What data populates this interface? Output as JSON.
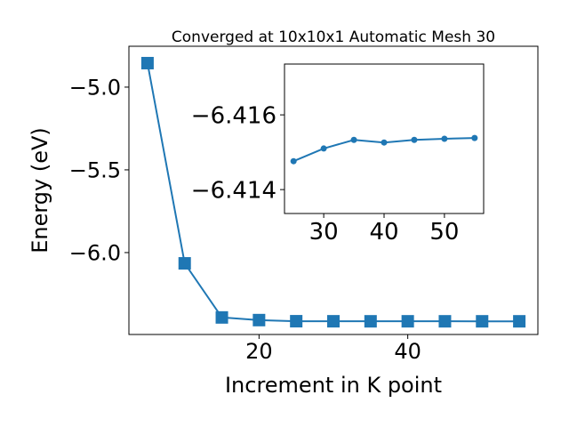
{
  "chart_data": [
    {
      "type": "line",
      "title": "Converged at 10x10x1 Automatic Mesh 30",
      "xlabel": "Increment in K point",
      "ylabel": "Energy (eV)",
      "x": [
        5,
        10,
        15,
        20,
        25,
        30,
        35,
        40,
        45,
        50,
        55
      ],
      "values": [
        -4.855,
        -6.065,
        -6.392,
        -6.408,
        -6.41476,
        -6.4151,
        -6.41533,
        -6.41526,
        -6.41533,
        -6.41536,
        -6.41538
      ],
      "color": "#1f77b4",
      "marker": "square",
      "xlim": [
        2.5,
        57.5
      ],
      "ylim": [
        -6.495,
        -4.753
      ],
      "xticks": [
        20,
        40
      ],
      "yticks": [
        {
          "value": -5.0,
          "label": "−5.0"
        },
        {
          "value": -5.5,
          "label": "−5.5"
        },
        {
          "value": -6.0,
          "label": "−6.0"
        }
      ]
    },
    {
      "type": "line",
      "x": [
        25,
        30,
        35,
        40,
        45,
        50,
        55
      ],
      "values": [
        -6.41476,
        -6.4151,
        -6.41533,
        -6.41526,
        -6.41533,
        -6.41536,
        -6.41538
      ],
      "color": "#1f77b4",
      "marker": "circle",
      "y_inverted": true,
      "xlim": [
        23.5,
        56.5
      ],
      "ylim": [
        -6.41336,
        -6.41736
      ],
      "xticks": [
        30,
        40,
        50
      ],
      "yticks": [
        {
          "value": -6.416,
          "label": "−6.416"
        },
        {
          "value": -6.414,
          "label": "−6.414"
        }
      ]
    }
  ]
}
